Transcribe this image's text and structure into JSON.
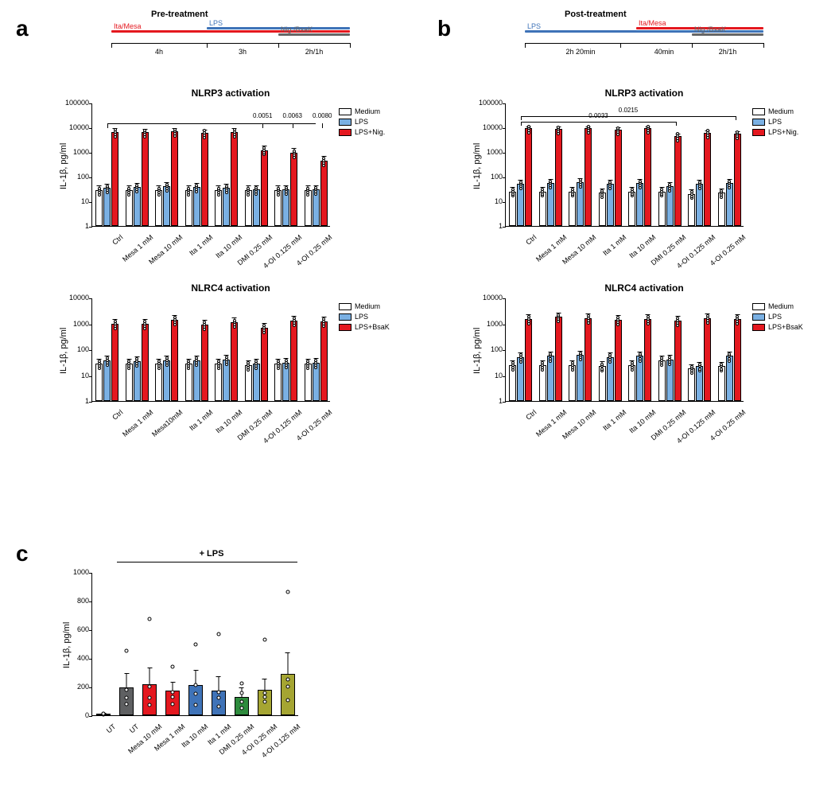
{
  "panel_a": {
    "label": "a",
    "timeline": {
      "title": "Pre-treatment",
      "bars": [
        {
          "label": "Ita/Mesa",
          "color": "#e4181f",
          "start": 0,
          "end": 300,
          "y": 4
        },
        {
          "label": "LPS",
          "color": "#3f73b8",
          "start": 120,
          "end": 300,
          "y": 8
        },
        {
          "label": "Nig./BsaK",
          "color": "#666666",
          "start": 210,
          "end": 300,
          "y": 0
        }
      ],
      "phases": [
        "4h",
        "3h",
        "2h/1h"
      ],
      "phase_positions": [
        60,
        165,
        255
      ]
    },
    "chart_top": {
      "title": "NLRP3 activation",
      "ylabel": "IL-1β, pg/ml",
      "yscale": "log",
      "yticks": [
        1,
        10,
        100,
        1000,
        10000,
        100000
      ],
      "categories": [
        "Ctrl",
        "Mesa 1 mM",
        "Mesa 10 mM",
        "Ita 1 mM",
        "Ita 10 mM",
        "DMI 0.25 mM",
        "4-OI 0.125 mM",
        "4-OI 0.25 mM"
      ],
      "series": [
        {
          "name": "Medium",
          "color": "#ffffff"
        },
        {
          "name": "LPS",
          "color": "#7ab0e3"
        },
        {
          "name": "LPS+Nig.",
          "color": "#e4181f"
        }
      ],
      "values": [
        [
          28,
          35,
          6500
        ],
        [
          28,
          38,
          6200
        ],
        [
          28,
          40,
          6800
        ],
        [
          28,
          38,
          6000
        ],
        [
          28,
          35,
          6500
        ],
        [
          28,
          30,
          1200
        ],
        [
          28,
          30,
          900
        ],
        [
          28,
          30,
          450
        ]
      ],
      "errors": [
        [
          15,
          18,
          2500
        ],
        [
          15,
          18,
          2400
        ],
        [
          15,
          20,
          2600
        ],
        [
          15,
          18,
          2300
        ],
        [
          15,
          18,
          2500
        ],
        [
          15,
          15,
          600
        ],
        [
          15,
          15,
          500
        ],
        [
          15,
          15,
          250
        ]
      ],
      "significance": [
        {
          "from": 0,
          "to": 5,
          "label": "0.0051",
          "y": 12000
        },
        {
          "from": 0,
          "to": 6,
          "label": "0.0063",
          "y": 12000
        },
        {
          "from": 0,
          "to": 7,
          "label": "0.0080",
          "y": 12000
        }
      ],
      "sig_bracket_height": 0.84
    },
    "chart_bottom": {
      "title": "NLRC4 activation",
      "ylabel": "IL-1β, pg/ml",
      "yscale": "log",
      "yticks": [
        1,
        10,
        100,
        1000,
        10000
      ],
      "categories": [
        "Ctrl",
        "Mesa 1 mM",
        "Mesa10mM",
        "Ita 1 mM",
        "Ita 10 mM",
        "DMI 0.25 mM",
        "4-OI 0.125 mM",
        "4-OI 0.25 mM"
      ],
      "series": [
        {
          "name": "Medium",
          "color": "#ffffff"
        },
        {
          "name": "LPS",
          "color": "#7ab0e3"
        },
        {
          "name": "LPS+BsaK",
          "color": "#e4181f"
        }
      ],
      "values": [
        [
          28,
          38,
          1000
        ],
        [
          28,
          35,
          1000
        ],
        [
          28,
          38,
          1400
        ],
        [
          28,
          38,
          900
        ],
        [
          28,
          40,
          1100
        ],
        [
          25,
          28,
          700
        ],
        [
          28,
          30,
          1300
        ],
        [
          28,
          30,
          1200
        ]
      ],
      "errors": [
        [
          15,
          20,
          500
        ],
        [
          15,
          18,
          500
        ],
        [
          15,
          20,
          700
        ],
        [
          15,
          20,
          450
        ],
        [
          15,
          20,
          550
        ],
        [
          12,
          14,
          350
        ],
        [
          15,
          15,
          650
        ],
        [
          15,
          15,
          600
        ]
      ]
    }
  },
  "panel_b": {
    "label": "b",
    "timeline": {
      "title": "Post-treatment",
      "bars": [
        {
          "label": "LPS",
          "color": "#3f73b8",
          "start": 0,
          "end": 300,
          "y": 4
        },
        {
          "label": "Ita/Mesa",
          "color": "#e4181f",
          "start": 140,
          "end": 300,
          "y": 8
        },
        {
          "label": "Nig./BsaK",
          "color": "#666666",
          "start": 210,
          "end": 300,
          "y": 0
        }
      ],
      "phases": [
        "2h 20min",
        "40min",
        "2h/1h"
      ],
      "phase_positions": [
        70,
        175,
        255
      ]
    },
    "chart_top": {
      "title": "NLRP3 activation",
      "ylabel": "IL-1β, pg/ml",
      "yscale": "log",
      "yticks": [
        1,
        10,
        100,
        1000,
        10000,
        100000
      ],
      "categories": [
        "Ctrl",
        "Mesa 1 mM",
        "Mesa 10 mM",
        "Ita 1 mM",
        "Ita 10 mM",
        "DMI 0.25 mM",
        "4-OI 0.125 mM",
        "4-OI 0.25 mM"
      ],
      "series": [
        {
          "name": "Medium",
          "color": "#ffffff"
        },
        {
          "name": "LPS",
          "color": "#7ab0e3"
        },
        {
          "name": "LPS+Nig.",
          "color": "#e4181f"
        }
      ],
      "values": [
        [
          25,
          50,
          9000
        ],
        [
          25,
          55,
          8500
        ],
        [
          25,
          60,
          9000
        ],
        [
          22,
          50,
          8000
        ],
        [
          25,
          55,
          9000
        ],
        [
          25,
          40,
          4500
        ],
        [
          20,
          50,
          6000
        ],
        [
          22,
          55,
          5500
        ]
      ],
      "errors": [
        [
          12,
          25,
          2000
        ],
        [
          12,
          25,
          2000
        ],
        [
          12,
          25,
          2000
        ],
        [
          12,
          25,
          2000
        ],
        [
          12,
          25,
          2000
        ],
        [
          12,
          20,
          1200
        ],
        [
          10,
          25,
          1500
        ],
        [
          11,
          25,
          1400
        ]
      ],
      "significance": [
        {
          "from": 0,
          "to": 5,
          "label": "0.0033",
          "y": 18000,
          "bracket": true
        },
        {
          "from": 0,
          "to": 7,
          "label": "0.0215",
          "y": 30000,
          "bracket": true
        }
      ]
    },
    "chart_bottom": {
      "title": "NLRC4 activation",
      "ylabel": "IL-1β, pg/ml",
      "yscale": "log",
      "yticks": [
        1,
        10,
        100,
        1000,
        10000
      ],
      "categories": [
        "Ctrl",
        "Mesa 1 mM",
        "Mesa 10 mM",
        "Ita 1 mM",
        "Ita 10 mM",
        "DMI 0.25 mM",
        "4-OI 0.125 mM",
        "4-OI 0.25 mM"
      ],
      "series": [
        {
          "name": "Medium",
          "color": "#ffffff"
        },
        {
          "name": "LPS",
          "color": "#7ab0e3"
        },
        {
          "name": "LPS+BsaK",
          "color": "#e4181f"
        }
      ],
      "values": [
        [
          25,
          50,
          1500
        ],
        [
          25,
          55,
          1800
        ],
        [
          25,
          60,
          1600
        ],
        [
          22,
          50,
          1400
        ],
        [
          25,
          55,
          1500
        ],
        [
          38,
          40,
          1300
        ],
        [
          18,
          22,
          1600
        ],
        [
          22,
          55,
          1500
        ]
      ],
      "errors": [
        [
          12,
          25,
          700
        ],
        [
          12,
          25,
          800
        ],
        [
          12,
          25,
          750
        ],
        [
          12,
          25,
          700
        ],
        [
          12,
          25,
          700
        ],
        [
          18,
          20,
          600
        ],
        [
          9,
          11,
          750
        ],
        [
          11,
          25,
          700
        ]
      ]
    }
  },
  "panel_c": {
    "label": "c",
    "chart": {
      "ylabel": "IL-1β, pg/ml",
      "yscale": "linear",
      "ylim": [
        0,
        1000
      ],
      "yticks": [
        0,
        200,
        400,
        600,
        800,
        1000
      ],
      "lps_label": "+ LPS",
      "categories": [
        "UT",
        "UT",
        "Mesa 10 mM",
        "Mesa 1 mM",
        "Ita 10 mM",
        "Ita 1 mM",
        "DMI 0.25 mM",
        "4-OI 0.25 mM",
        "4-OI 0.125 mM"
      ],
      "colors": [
        "#ffffff",
        "#5f6062",
        "#e4181f",
        "#e4181f",
        "#3f73b8",
        "#3f73b8",
        "#2e8b3d",
        "#a5a532",
        "#a5a532"
      ],
      "values": [
        8,
        195,
        215,
        175,
        210,
        175,
        130,
        180,
        290
      ],
      "errors": [
        5,
        100,
        120,
        60,
        105,
        100,
        65,
        75,
        150
      ],
      "points": [
        [
          5,
          8,
          10,
          12
        ],
        [
          80,
          120,
          180,
          450
        ],
        [
          75,
          120,
          200,
          670
        ],
        [
          80,
          130,
          160,
          340
        ],
        [
          75,
          150,
          210,
          495
        ],
        [
          60,
          120,
          160,
          565
        ],
        [
          50,
          95,
          155,
          220
        ],
        [
          95,
          130,
          155,
          530
        ],
        [
          105,
          200,
          250,
          860
        ]
      ]
    }
  }
}
